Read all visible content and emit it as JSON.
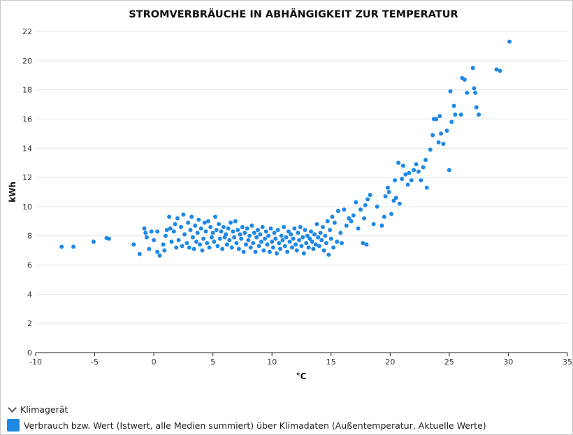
{
  "chart_data": {
    "type": "scatter",
    "title": "STROMVERBRÄUCHE IN ABHÄNGIGKEIT ZUR TEMPERATUR",
    "xlabel": "°C",
    "ylabel": "kWh",
    "xlim": [
      -10,
      35
    ],
    "ylim": [
      0,
      22
    ],
    "xticks": [
      -10,
      -5,
      0,
      5,
      10,
      15,
      20,
      25,
      30,
      35
    ],
    "xtick_labels": [
      "-10",
      "-5",
      "0",
      "5",
      "10",
      "15",
      "20",
      "25",
      "30",
      "35"
    ],
    "yticks": [
      0,
      2,
      4,
      6,
      8,
      10,
      12,
      14,
      16,
      18,
      20,
      22
    ],
    "ytick_labels": [
      "0",
      "2",
      "4",
      "6",
      "8",
      "10",
      "12",
      "14",
      "16",
      "18",
      "20",
      "22"
    ],
    "grid": "horizontal",
    "legend_position": "bottom-left",
    "series": [
      {
        "name": "Verbrauch bzw. Wert (Istwert, alle Medien summiert) über Klimadaten (Außentemperatur, Aktuelle Werte)",
        "color": "#1e88e5",
        "points": [
          [
            -7.8,
            7.25
          ],
          [
            -6.8,
            7.25
          ],
          [
            -5.1,
            7.6
          ],
          [
            -4.0,
            7.85
          ],
          [
            -3.8,
            7.8
          ],
          [
            -1.7,
            7.4
          ],
          [
            -1.2,
            6.75
          ],
          [
            -0.8,
            8.5
          ],
          [
            -0.7,
            8.2
          ],
          [
            -0.6,
            7.9
          ],
          [
            -0.4,
            7.1
          ],
          [
            -0.2,
            8.3
          ],
          [
            0.0,
            7.7
          ],
          [
            0.3,
            8.3
          ],
          [
            0.3,
            6.9
          ],
          [
            0.5,
            6.65
          ],
          [
            0.8,
            7.4
          ],
          [
            0.9,
            7.0
          ],
          [
            1.0,
            8.0
          ],
          [
            1.1,
            8.4
          ],
          [
            1.3,
            9.3
          ],
          [
            1.4,
            8.5
          ],
          [
            1.5,
            7.6
          ],
          [
            1.7,
            8.3
          ],
          [
            1.8,
            8.8
          ],
          [
            1.9,
            7.2
          ],
          [
            2.0,
            9.2
          ],
          [
            2.1,
            7.7
          ],
          [
            2.3,
            8.6
          ],
          [
            2.4,
            7.3
          ],
          [
            2.5,
            9.45
          ],
          [
            2.6,
            8.1
          ],
          [
            2.8,
            7.5
          ],
          [
            2.9,
            8.9
          ],
          [
            3.0,
            7.2
          ],
          [
            3.1,
            8.4
          ],
          [
            3.2,
            9.3
          ],
          [
            3.3,
            7.9
          ],
          [
            3.4,
            7.1
          ],
          [
            3.5,
            8.7
          ],
          [
            3.6,
            7.6
          ],
          [
            3.7,
            8.2
          ],
          [
            3.8,
            9.1
          ],
          [
            3.9,
            7.4
          ],
          [
            4.0,
            8.5
          ],
          [
            4.1,
            7.0
          ],
          [
            4.2,
            7.8
          ],
          [
            4.3,
            8.9
          ],
          [
            4.4,
            8.3
          ],
          [
            4.5,
            7.5
          ],
          [
            4.6,
            9.0
          ],
          [
            4.7,
            7.2
          ],
          [
            4.8,
            8.6
          ],
          [
            4.9,
            7.9
          ],
          [
            5.0,
            8.2
          ],
          [
            5.1,
            7.6
          ],
          [
            5.2,
            9.3
          ],
          [
            5.3,
            8.4
          ],
          [
            5.4,
            7.3
          ],
          [
            5.5,
            8.8
          ],
          [
            5.6,
            7.8
          ],
          [
            5.7,
            8.3
          ],
          [
            5.8,
            7.1
          ],
          [
            5.9,
            8.6
          ],
          [
            6.0,
            7.9
          ],
          [
            6.1,
            8.1
          ],
          [
            6.2,
            7.4
          ],
          [
            6.3,
            8.5
          ],
          [
            6.4,
            7.7
          ],
          [
            6.5,
            8.9
          ],
          [
            6.6,
            7.2
          ],
          [
            6.7,
            8.3
          ],
          [
            6.8,
            7.9
          ],
          [
            6.9,
            9.0
          ],
          [
            7.0,
            7.5
          ],
          [
            7.1,
            8.4
          ],
          [
            7.2,
            7.1
          ],
          [
            7.3,
            8.1
          ],
          [
            7.4,
            7.8
          ],
          [
            7.5,
            8.6
          ],
          [
            7.6,
            6.9
          ],
          [
            7.7,
            8.2
          ],
          [
            7.8,
            7.4
          ],
          [
            7.9,
            8.5
          ],
          [
            8.0,
            7.7
          ],
          [
            8.1,
            8.0
          ],
          [
            8.2,
            7.2
          ],
          [
            8.3,
            8.7
          ],
          [
            8.4,
            7.5
          ],
          [
            8.5,
            8.2
          ],
          [
            8.6,
            6.9
          ],
          [
            8.7,
            7.9
          ],
          [
            8.8,
            8.4
          ],
          [
            8.9,
            7.3
          ],
          [
            9.0,
            8.1
          ],
          [
            9.1,
            7.6
          ],
          [
            9.2,
            8.6
          ],
          [
            9.3,
            7.0
          ],
          [
            9.4,
            7.8
          ],
          [
            9.5,
            8.3
          ],
          [
            9.6,
            7.4
          ],
          [
            9.7,
            8.0
          ],
          [
            9.8,
            6.9
          ],
          [
            9.9,
            8.5
          ],
          [
            10.0,
            7.6
          ],
          [
            10.1,
            7.2
          ],
          [
            10.2,
            8.2
          ],
          [
            10.3,
            7.8
          ],
          [
            10.4,
            6.8
          ],
          [
            10.5,
            8.4
          ],
          [
            10.6,
            7.5
          ],
          [
            10.7,
            7.1
          ],
          [
            10.8,
            8.0
          ],
          [
            10.9,
            7.7
          ],
          [
            11.0,
            8.6
          ],
          [
            11.1,
            7.3
          ],
          [
            11.2,
            7.9
          ],
          [
            11.3,
            6.9
          ],
          [
            11.4,
            8.3
          ],
          [
            11.5,
            7.6
          ],
          [
            11.6,
            8.1
          ],
          [
            11.7,
            7.2
          ],
          [
            11.8,
            7.8
          ],
          [
            11.9,
            8.5
          ],
          [
            12.0,
            7.4
          ],
          [
            12.1,
            7.0
          ],
          [
            12.2,
            8.2
          ],
          [
            12.3,
            7.7
          ],
          [
            12.4,
            8.6
          ],
          [
            12.5,
            7.3
          ],
          [
            12.6,
            7.9
          ],
          [
            12.7,
            6.8
          ],
          [
            12.8,
            8.4
          ],
          [
            12.9,
            7.5
          ],
          [
            13.0,
            8.0
          ],
          [
            13.1,
            7.2
          ],
          [
            13.2,
            7.8
          ],
          [
            13.3,
            8.3
          ],
          [
            13.4,
            7.6
          ],
          [
            13.5,
            7.1
          ],
          [
            13.6,
            8.1
          ],
          [
            13.7,
            7.4
          ],
          [
            13.8,
            8.8
          ],
          [
            13.9,
            7.9
          ],
          [
            14.0,
            7.3
          ],
          [
            14.1,
            8.2
          ],
          [
            14.2,
            7.7
          ],
          [
            14.3,
            8.6
          ],
          [
            14.4,
            7.0
          ],
          [
            14.5,
            8.0
          ],
          [
            14.6,
            7.5
          ],
          [
            14.7,
            9.0
          ],
          [
            14.8,
            6.7
          ],
          [
            14.9,
            8.4
          ],
          [
            15.0,
            7.8
          ],
          [
            15.1,
            9.3
          ],
          [
            15.2,
            7.2
          ],
          [
            15.3,
            8.9
          ],
          [
            15.5,
            7.6
          ],
          [
            15.6,
            9.7
          ],
          [
            15.8,
            8.2
          ],
          [
            15.9,
            7.5
          ],
          [
            16.1,
            9.8
          ],
          [
            16.3,
            8.7
          ],
          [
            16.5,
            9.2
          ],
          [
            16.7,
            9.0
          ],
          [
            16.9,
            9.4
          ],
          [
            17.1,
            10.3
          ],
          [
            17.3,
            8.5
          ],
          [
            17.5,
            9.8
          ],
          [
            17.7,
            7.5
          ],
          [
            17.8,
            9.2
          ],
          [
            17.9,
            10.1
          ],
          [
            18.0,
            7.4
          ],
          [
            18.1,
            10.5
          ],
          [
            18.3,
            10.8
          ],
          [
            18.6,
            8.8
          ],
          [
            18.9,
            10.0
          ],
          [
            19.3,
            8.7
          ],
          [
            19.5,
            9.3
          ],
          [
            19.6,
            10.7
          ],
          [
            19.8,
            11.3
          ],
          [
            19.9,
            11.0
          ],
          [
            20.1,
            9.5
          ],
          [
            20.3,
            10.4
          ],
          [
            20.4,
            11.8
          ],
          [
            20.5,
            10.6
          ],
          [
            20.7,
            13.0
          ],
          [
            20.8,
            10.2
          ],
          [
            21.0,
            11.9
          ],
          [
            21.1,
            12.8
          ],
          [
            21.3,
            12.2
          ],
          [
            21.5,
            11.5
          ],
          [
            21.6,
            12.3
          ],
          [
            21.8,
            11.8
          ],
          [
            22.0,
            12.5
          ],
          [
            22.2,
            12.9
          ],
          [
            22.4,
            12.4
          ],
          [
            22.6,
            11.8
          ],
          [
            22.8,
            12.7
          ],
          [
            23.0,
            13.2
          ],
          [
            23.1,
            11.3
          ],
          [
            23.4,
            13.9
          ],
          [
            23.6,
            14.9
          ],
          [
            23.7,
            16.0
          ],
          [
            23.9,
            16.0
          ],
          [
            24.1,
            14.4
          ],
          [
            24.2,
            16.2
          ],
          [
            24.3,
            15.0
          ],
          [
            24.5,
            14.3
          ],
          [
            24.8,
            15.2
          ],
          [
            25.0,
            12.5
          ],
          [
            25.1,
            17.9
          ],
          [
            25.2,
            15.8
          ],
          [
            25.4,
            16.9
          ],
          [
            25.5,
            16.3
          ],
          [
            26.0,
            16.3
          ],
          [
            26.1,
            18.8
          ],
          [
            26.3,
            18.7
          ],
          [
            26.5,
            17.8
          ],
          [
            27.0,
            19.5
          ],
          [
            27.1,
            18.1
          ],
          [
            27.2,
            17.8
          ],
          [
            27.3,
            16.8
          ],
          [
            27.5,
            16.3
          ],
          [
            29.0,
            19.4
          ],
          [
            29.3,
            19.3
          ],
          [
            30.1,
            21.3
          ]
        ]
      }
    ]
  },
  "legend": {
    "group_label": "Klimagerät",
    "item_label": "Verbrauch bzw. Wert (Istwert, alle Medien summiert) über Klimadaten (Außentemperatur, Aktuelle Werte)",
    "item_color": "#1e88e5"
  }
}
